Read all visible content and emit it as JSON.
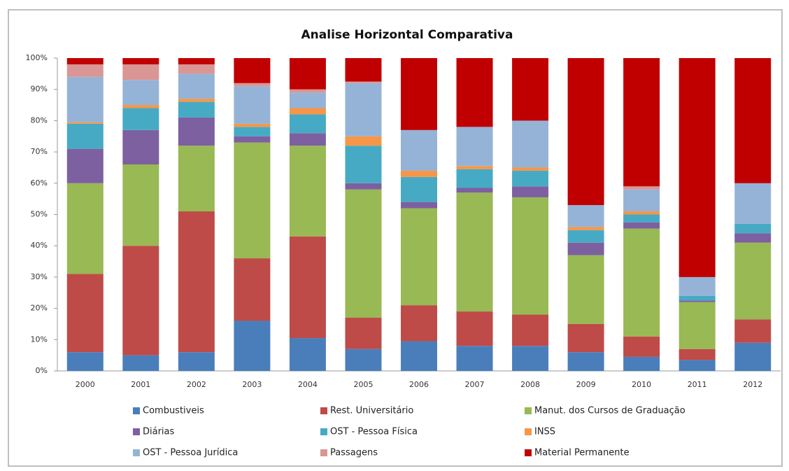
{
  "chart_data": {
    "type": "stacked_bar",
    "title": "Analise Horizontal Comparativa",
    "categories": [
      "2000",
      "2001",
      "2002",
      "2003",
      "2004",
      "2005",
      "2006",
      "2007",
      "2008",
      "2009",
      "2010",
      "2011",
      "2012"
    ],
    "series": [
      {
        "name": "Combustiveis",
        "color": "#4a7ebb",
        "values": [
          6,
          5,
          6,
          16,
          10.5,
          7,
          9.5,
          8,
          8,
          6,
          4.5,
          3.5,
          9
        ]
      },
      {
        "name": "Rest. Universitário",
        "color": "#be4b48",
        "values": [
          25,
          35,
          45,
          20,
          32.5,
          10,
          11.5,
          11,
          10,
          9,
          6.5,
          3.5,
          7.5
        ]
      },
      {
        "name": "Manut. dos Cursos de Graduação",
        "color": "#98b954",
        "values": [
          29,
          26,
          21,
          37,
          29,
          41,
          31,
          38,
          37.5,
          22,
          34.5,
          15,
          24.5
        ]
      },
      {
        "name": "Diárias",
        "color": "#7d60a0",
        "values": [
          11,
          11,
          9,
          2,
          4,
          2,
          2,
          1.5,
          3.5,
          4,
          2,
          0.5,
          3
        ]
      },
      {
        "name": "OST - Pessoa Física",
        "color": "#46aac5",
        "values": [
          8,
          7,
          5,
          3,
          6,
          12,
          8,
          6,
          5,
          4,
          2.5,
          1.5,
          3
        ]
      },
      {
        "name": "INSS",
        "color": "#f79646",
        "values": [
          0.5,
          1,
          1,
          1,
          2,
          3,
          2,
          1,
          1,
          1,
          1,
          0,
          0
        ]
      },
      {
        "name": "OST - Pessoa Jurídica",
        "color": "#95b3d7",
        "values": [
          14.5,
          8,
          8,
          12,
          5,
          17,
          13,
          12.5,
          15,
          7,
          7,
          6,
          13
        ]
      },
      {
        "name": "Passagens",
        "color": "#d99694",
        "values": [
          4,
          5,
          3,
          1,
          1,
          0.5,
          0,
          0,
          0,
          0,
          1,
          0,
          0
        ]
      },
      {
        "name": "Material Permanente",
        "color": "#c00000",
        "values": [
          2,
          2,
          2,
          8,
          10,
          7.5,
          23,
          22,
          20,
          47,
          41,
          70,
          40
        ]
      }
    ],
    "ylim": [
      0,
      100
    ],
    "yticks": [
      {
        "value": 0,
        "label": "0%"
      },
      {
        "value": 10,
        "label": "10%"
      },
      {
        "value": 20,
        "label": "20%"
      },
      {
        "value": 30,
        "label": "30%"
      },
      {
        "value": 40,
        "label": "40%"
      },
      {
        "value": 50,
        "label": "50%"
      },
      {
        "value": 60,
        "label": "60%"
      },
      {
        "value": 70,
        "label": "70%"
      },
      {
        "value": 80,
        "label": "80%"
      },
      {
        "value": 90,
        "label": "90%"
      },
      {
        "value": 100,
        "label": "100%"
      }
    ],
    "legend": "bottom"
  }
}
